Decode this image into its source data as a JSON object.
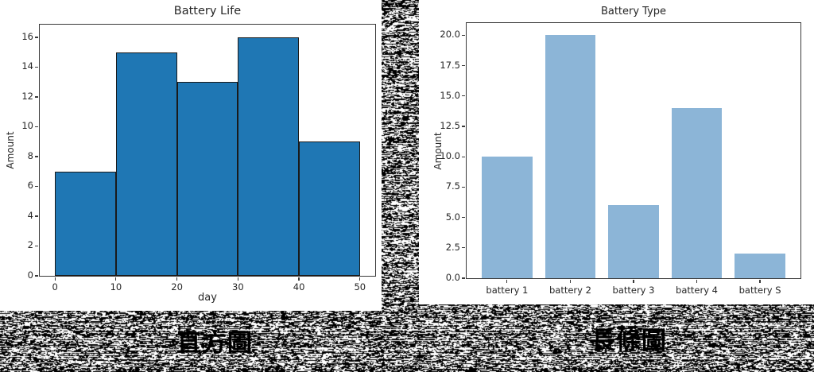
{
  "background": {
    "style": "black-white-static-noise",
    "colors": [
      "#000000",
      "#ffffff"
    ]
  },
  "captions": {
    "left": "直方圖",
    "right": "長條圖"
  },
  "chart_data": [
    {
      "type": "bar",
      "subtype": "histogram",
      "title": "Battery Life",
      "xlabel": "day",
      "ylabel": "Amount",
      "bin_edges": [
        0,
        10,
        20,
        30,
        40,
        50
      ],
      "values": [
        7,
        15,
        13,
        16,
        9
      ],
      "xticks": [
        0,
        10,
        20,
        30,
        40,
        50
      ],
      "yticks": [
        0,
        2,
        4,
        6,
        8,
        10,
        12,
        14,
        16
      ],
      "xlim": [
        -2.5,
        52.5
      ],
      "ylim": [
        0,
        16.85
      ],
      "grid": false,
      "legend": null,
      "bar_color": "#1f77b4",
      "bar_edge_color": "#1a1a1a"
    },
    {
      "type": "bar",
      "title": "Battery Type",
      "xlabel": "",
      "ylabel": "Amount",
      "categories": [
        "battery 1",
        "battery 2",
        "battery 3",
        "battery 4",
        "battery S"
      ],
      "values": [
        10,
        20,
        6,
        14,
        2
      ],
      "yticks": [
        0,
        2.5,
        5,
        7.5,
        10,
        12.5,
        15,
        17.5,
        20
      ],
      "ytick_labels": [
        "0.0",
        "2.5",
        "5.0",
        "7.5",
        "10.0",
        "12.5",
        "15.0",
        "17.5",
        "20.0"
      ],
      "ylim": [
        0,
        21
      ],
      "grid": false,
      "legend": null,
      "bar_color": "#8cb5d7",
      "bar_edge_color": null
    }
  ]
}
